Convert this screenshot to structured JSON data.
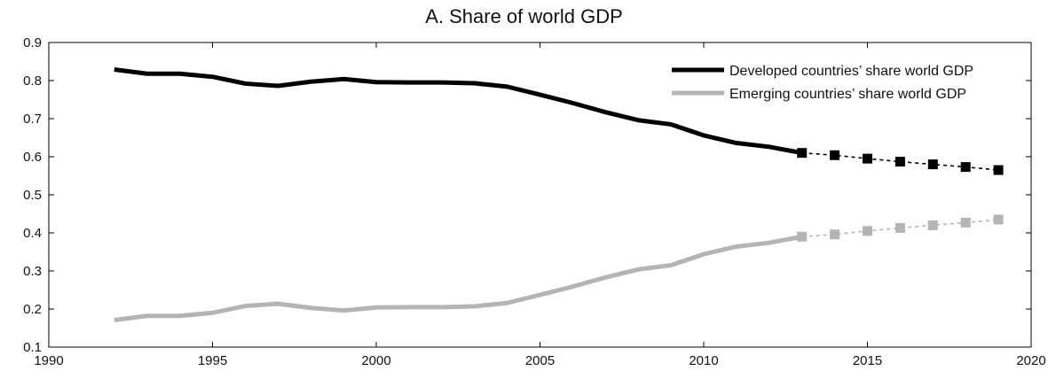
{
  "chart_data": {
    "type": "line",
    "title": "A. Share of world GDP",
    "xlabel": "",
    "ylabel": "",
    "xlim": [
      1990,
      2020
    ],
    "ylim": [
      0.1,
      0.9
    ],
    "xticks": [
      1990,
      1995,
      2000,
      2005,
      2010,
      2015,
      2020
    ],
    "xtick_labels": [
      "1990",
      "1995",
      "2000",
      "2005",
      "2010",
      "2015",
      "2020"
    ],
    "yticks": [
      0.1,
      0.2,
      0.3,
      0.4,
      0.5,
      0.6,
      0.7,
      0.8,
      0.9
    ],
    "ytick_labels": [
      "0.1",
      "0.2",
      "0.3",
      "0.4",
      "0.5",
      "0.6",
      "0.7",
      "0.8",
      "0.9"
    ],
    "grid": false,
    "legend_position": "top-right",
    "series": [
      {
        "name": "Developed countries’ share world GDP",
        "color": "#000000",
        "x": [
          1992,
          1993,
          1994,
          1995,
          1996,
          1997,
          1998,
          1999,
          2000,
          2001,
          2002,
          2003,
          2004,
          2005,
          2006,
          2007,
          2008,
          2009,
          2010,
          2011,
          2012,
          2013
        ],
        "values": [
          0.829,
          0.818,
          0.818,
          0.81,
          0.792,
          0.786,
          0.797,
          0.804,
          0.796,
          0.795,
          0.795,
          0.793,
          0.784,
          0.763,
          0.741,
          0.717,
          0.696,
          0.685,
          0.656,
          0.636,
          0.626,
          0.61
        ],
        "projection": {
          "x": [
            2013,
            2014,
            2015,
            2016,
            2017,
            2018,
            2019
          ],
          "values": [
            0.61,
            0.604,
            0.595,
            0.587,
            0.58,
            0.573,
            0.565
          ]
        }
      },
      {
        "name": "Emerging countries’ share world GDP",
        "color": "#b4b4b4",
        "x": [
          1992,
          1993,
          1994,
          1995,
          1996,
          1997,
          1998,
          1999,
          2000,
          2001,
          2002,
          2003,
          2004,
          2005,
          2006,
          2007,
          2008,
          2009,
          2010,
          2011,
          2012,
          2013
        ],
        "values": [
          0.171,
          0.182,
          0.182,
          0.19,
          0.208,
          0.214,
          0.203,
          0.196,
          0.204,
          0.205,
          0.205,
          0.207,
          0.216,
          0.237,
          0.259,
          0.283,
          0.304,
          0.315,
          0.344,
          0.364,
          0.374,
          0.39
        ],
        "projection": {
          "x": [
            2013,
            2014,
            2015,
            2016,
            2017,
            2018,
            2019
          ],
          "values": [
            0.39,
            0.396,
            0.405,
            0.413,
            0.42,
            0.427,
            0.435
          ]
        }
      }
    ]
  }
}
